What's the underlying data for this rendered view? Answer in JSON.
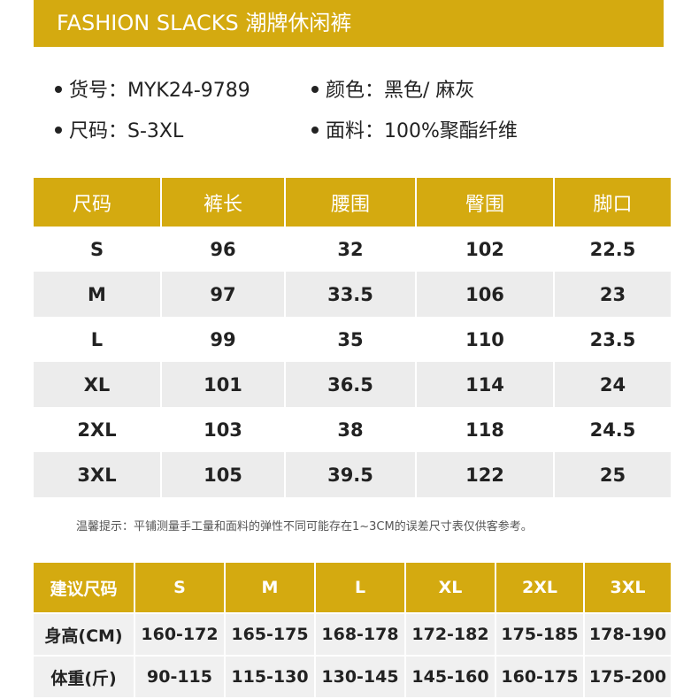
{
  "banner": {
    "title": "FASHION SLACKS  潮牌休闲裤"
  },
  "info": {
    "item_no": "货号：MYK24-9789",
    "color": "颜色：黑色/ 麻灰",
    "size": "尺码：S-3XL",
    "fabric": "面料：100%聚酯纤维"
  },
  "size_table": {
    "headers": [
      "尺码",
      "裤长",
      "腰围",
      "臀围",
      "脚口"
    ],
    "rows": [
      [
        "S",
        "96",
        "32",
        "102",
        "22.5"
      ],
      [
        "M",
        "97",
        "33.5",
        "106",
        "23"
      ],
      [
        "L",
        "99",
        "35",
        "110",
        "23.5"
      ],
      [
        "XL",
        "101",
        "36.5",
        "114",
        "24"
      ],
      [
        "2XL",
        "103",
        "38",
        "118",
        "24.5"
      ],
      [
        "3XL",
        "105",
        "39.5",
        "122",
        "25"
      ]
    ]
  },
  "note": "温馨提示：平铺测量手工量和面料的弹性不同可能存在1~3CM的误差尺寸表仅供客参考。",
  "rec_table": {
    "headers": [
      "建议尺码",
      "S",
      "M",
      "L",
      "XL",
      "2XL",
      "3XL"
    ],
    "rows": [
      [
        "身高(CM)",
        "160-172",
        "165-175",
        "168-178",
        "172-182",
        "175-185",
        "178-190"
      ],
      [
        "体重(斤)",
        "90-115",
        "115-130",
        "130-145",
        "145-160",
        "160-175",
        "175-200"
      ]
    ]
  },
  "colors": {
    "accent": "#d4aa10",
    "stripe": "#ececec"
  }
}
